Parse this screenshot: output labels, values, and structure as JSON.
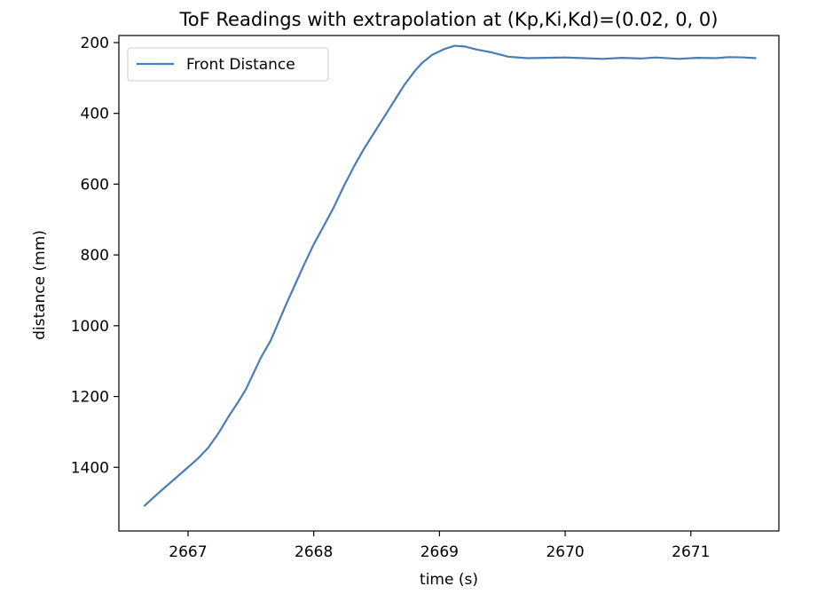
{
  "chart_data": {
    "type": "line",
    "title": "ToF Readings with extrapolation at (Kp,Ki,Kd)=(0.02, 0, 0)",
    "xlabel": "time (s)",
    "ylabel": "distance (mm)",
    "xlim": [
      2666.45,
      2671.7
    ],
    "ylim": [
      1580,
      180
    ],
    "y_inverted": true,
    "x_ticks": [
      2667,
      2668,
      2669,
      2670,
      2671
    ],
    "x_tick_labels": [
      "2667",
      "2668",
      "2669",
      "2670",
      "2671"
    ],
    "y_ticks": [
      200,
      400,
      600,
      800,
      1000,
      1200,
      1400
    ],
    "y_tick_labels": [
      "200",
      "400",
      "600",
      "800",
      "1000",
      "1200",
      "1400"
    ],
    "grid": false,
    "legend_position": "top-left",
    "series": [
      {
        "name": "Front Distance",
        "color": "#4a7db5",
        "points": [
          [
            2666.65,
            1510
          ],
          [
            2666.78,
            1468
          ],
          [
            2666.9,
            1431
          ],
          [
            2667.0,
            1400
          ],
          [
            2667.08,
            1375
          ],
          [
            2667.16,
            1345
          ],
          [
            2667.24,
            1305
          ],
          [
            2667.32,
            1258
          ],
          [
            2667.4,
            1215
          ],
          [
            2667.46,
            1180
          ],
          [
            2667.52,
            1135
          ],
          [
            2667.58,
            1090
          ],
          [
            2667.66,
            1040
          ],
          [
            2667.72,
            990
          ],
          [
            2667.78,
            940
          ],
          [
            2667.85,
            885
          ],
          [
            2667.92,
            830
          ],
          [
            2668.0,
            770
          ],
          [
            2668.08,
            718
          ],
          [
            2668.16,
            665
          ],
          [
            2668.24,
            605
          ],
          [
            2668.32,
            550
          ],
          [
            2668.4,
            500
          ],
          [
            2668.48,
            455
          ],
          [
            2668.56,
            410
          ],
          [
            2668.64,
            365
          ],
          [
            2668.72,
            320
          ],
          [
            2668.8,
            282
          ],
          [
            2668.86,
            258
          ],
          [
            2668.94,
            235
          ],
          [
            2669.04,
            218
          ],
          [
            2669.12,
            209
          ],
          [
            2669.2,
            211
          ],
          [
            2669.3,
            220
          ],
          [
            2669.42,
            228
          ],
          [
            2669.55,
            240
          ],
          [
            2669.7,
            244
          ],
          [
            2669.85,
            243
          ],
          [
            2670.0,
            242
          ],
          [
            2670.15,
            244
          ],
          [
            2670.3,
            246
          ],
          [
            2670.45,
            243
          ],
          [
            2670.6,
            245
          ],
          [
            2670.72,
            242
          ],
          [
            2670.9,
            246
          ],
          [
            2671.05,
            243
          ],
          [
            2671.2,
            244
          ],
          [
            2671.3,
            241
          ],
          [
            2671.42,
            242
          ],
          [
            2671.52,
            244
          ]
        ]
      }
    ]
  }
}
